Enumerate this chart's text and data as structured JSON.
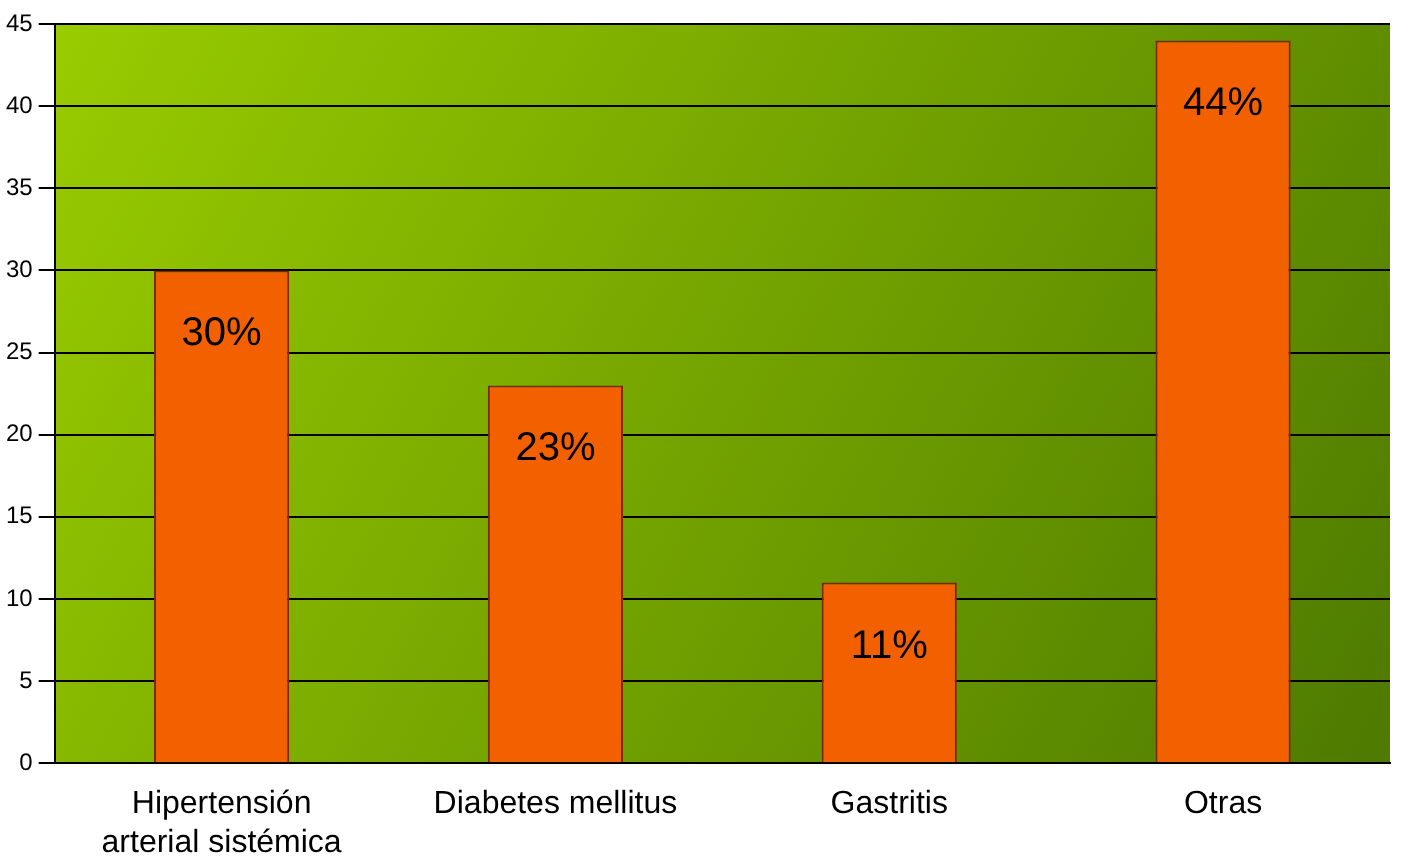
{
  "chart_data": {
    "type": "bar",
    "categories": [
      "Hipertensión arterial sistémica",
      "Diabetes mellitus",
      "Gastritis",
      "Otras"
    ],
    "values": [
      30,
      23,
      11,
      44
    ],
    "value_labels": [
      "30%",
      "23%",
      "11%",
      "44%"
    ],
    "color": "#f26000",
    "ylim": [
      0,
      45
    ],
    "yticks": [
      0,
      5,
      10,
      15,
      20,
      25,
      30,
      35,
      40,
      45
    ],
    "grid": "y",
    "legend": false
  }
}
